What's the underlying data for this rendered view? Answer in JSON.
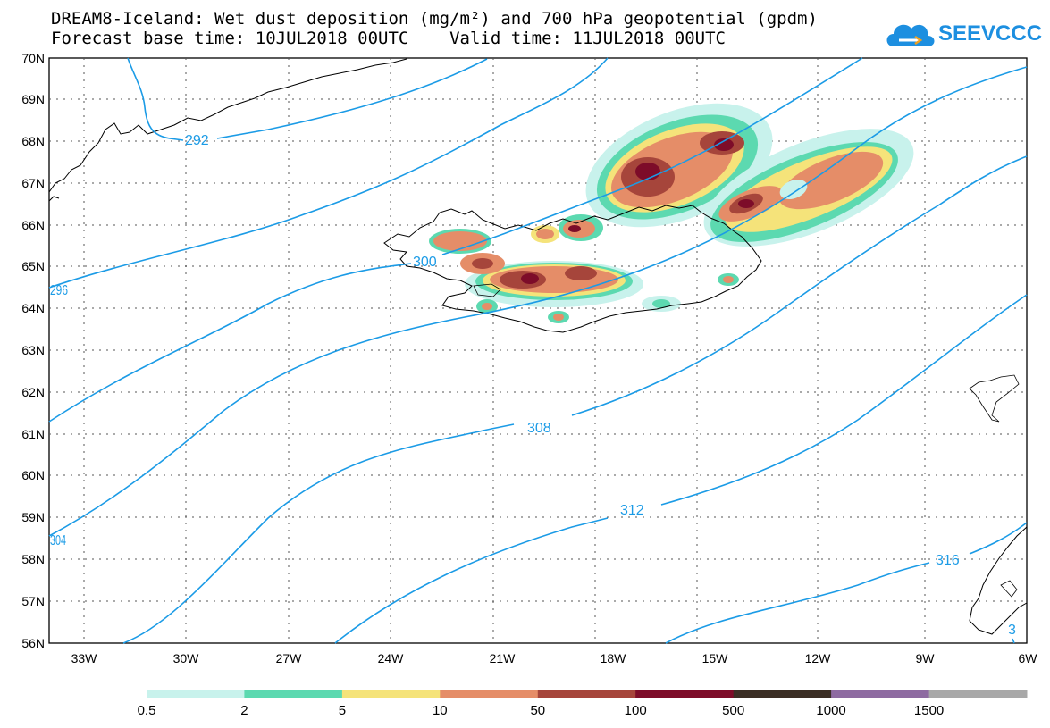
{
  "header": {
    "title_line1": "DREAM8-Iceland: Wet dust deposition (mg/m²) and 700 hPa geopotential (gpdm)",
    "title_line2": "Forecast base time: 10JUL2018 00UTC    Valid time: 11JUL2018 00UTC"
  },
  "logo": {
    "text": "SEEVCCC",
    "icon": "cloud-icon",
    "color": "#1d8fe0"
  },
  "map": {
    "lat_labels": [
      "70N",
      "69N",
      "68N",
      "67N",
      "66N",
      "65N",
      "64N",
      "63N",
      "62N",
      "61N",
      "60N",
      "59N",
      "58N",
      "57N",
      "56N"
    ],
    "lon_labels": [
      "33W",
      "30W",
      "27W",
      "24W",
      "21W",
      "18W",
      "15W",
      "12W",
      "9W",
      "6W"
    ],
    "contour_color": "#1b9be6",
    "contour_labels": [
      "292",
      "296",
      "300",
      "304",
      "308",
      "312",
      "316",
      "3"
    ]
  },
  "legend": {
    "colors": [
      "#c8f2ec",
      "#5cd9b0",
      "#f5e37a",
      "#e58d68",
      "#a6453b",
      "#7d0c29",
      "#3b2e25",
      "#8e6ba1",
      "#a8a8a8"
    ],
    "labels": [
      "0.5",
      "2",
      "5",
      "10",
      "50",
      "100",
      "500",
      "1000",
      "1500"
    ]
  }
}
